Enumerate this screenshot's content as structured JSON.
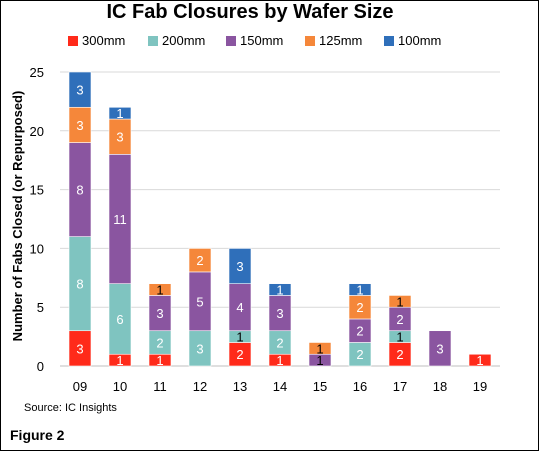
{
  "chart_data": {
    "type": "bar",
    "stacked": true,
    "title": "IC Fab Closures by Wafer Size",
    "ylabel": "Number of Fabs Closed (or Repurposed)",
    "xlabel": "",
    "ylim": [
      0,
      25
    ],
    "yticks": [
      0,
      5,
      10,
      15,
      20,
      25
    ],
    "grid": true,
    "legend_position": "top",
    "categories": [
      "09",
      "10",
      "11",
      "12",
      "13",
      "14",
      "15",
      "16",
      "17",
      "18",
      "19"
    ],
    "series": [
      {
        "name": "300mm",
        "color": "#ff2a1a",
        "values": [
          3,
          1,
          1,
          0,
          2,
          1,
          0,
          0,
          2,
          0,
          1
        ]
      },
      {
        "name": "200mm",
        "color": "#7fc4c0",
        "values": [
          8,
          6,
          2,
          3,
          1,
          2,
          0,
          2,
          1,
          0,
          0
        ]
      },
      {
        "name": "150mm",
        "color": "#8a55a0",
        "values": [
          8,
          11,
          3,
          5,
          4,
          3,
          1,
          2,
          2,
          3,
          0
        ]
      },
      {
        "name": "125mm",
        "color": "#f5873a",
        "values": [
          3,
          3,
          1,
          2,
          0,
          0,
          1,
          2,
          1,
          0,
          0
        ]
      },
      {
        "name": "100mm",
        "color": "#2f6fba",
        "values": [
          3,
          1,
          0,
          0,
          3,
          1,
          0,
          1,
          0,
          0,
          0
        ]
      }
    ]
  },
  "source_text": "Source:  IC Insights",
  "figure_label": "Figure 2"
}
